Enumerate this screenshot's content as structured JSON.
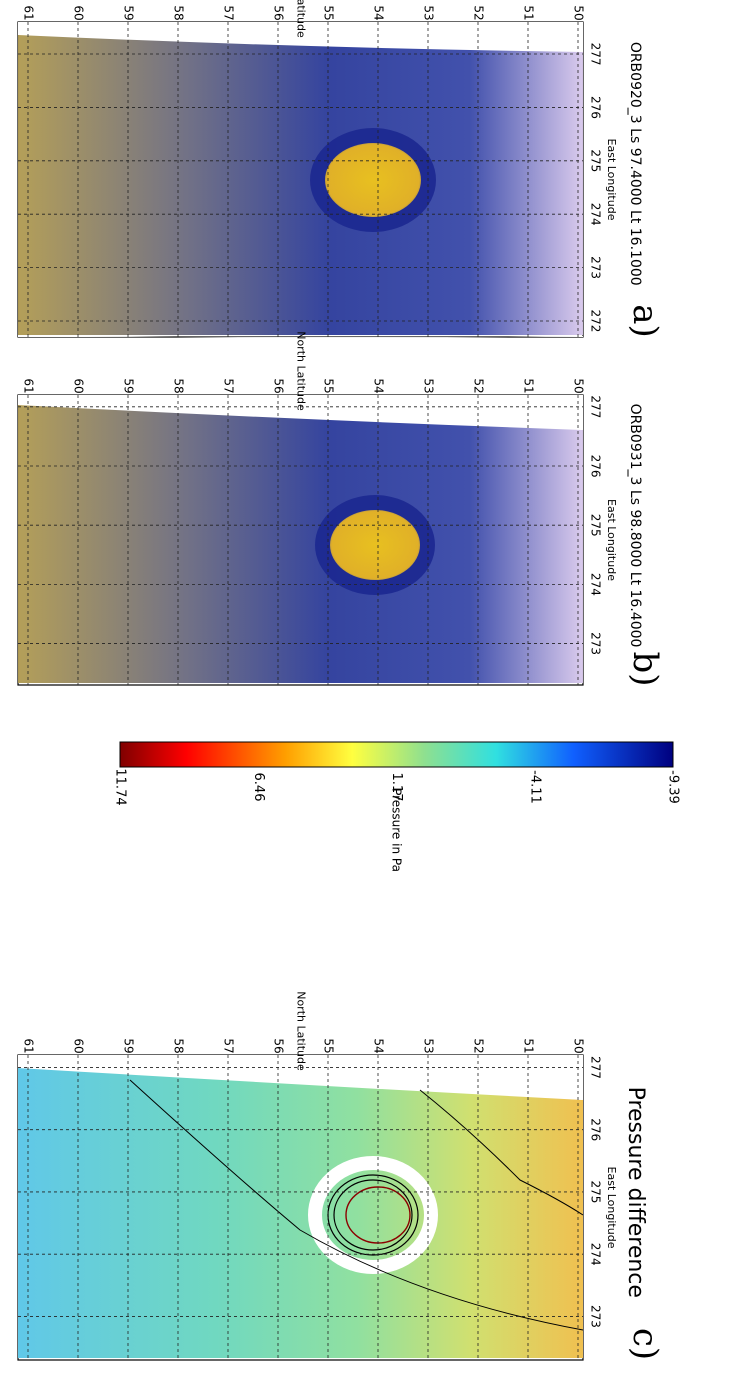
{
  "panels": [
    {
      "id": "a",
      "letter": "a)",
      "caption": "ORB0920_3 Ls 97.4000 Lt 16.1000",
      "xlabel": "East Longitude",
      "ylabel": "North Latitude",
      "x_ticks": [
        "272",
        "273",
        "274",
        "275",
        "276",
        "277"
      ],
      "y_ticks": [
        "50",
        "51",
        "52",
        "53",
        "54",
        "55",
        "56",
        "57",
        "58",
        "59",
        "60",
        "61"
      ],
      "colormap": "brown-blue-pink"
    },
    {
      "id": "b",
      "letter": "b)",
      "caption": "ORB0931_3 Ls 98.8000 Lt 16.4000",
      "xlabel": "East Longitude",
      "ylabel": "North Latitude",
      "x_ticks": [
        "273",
        "274",
        "275",
        "276",
        "277"
      ],
      "y_ticks": [
        "50",
        "51",
        "52",
        "53",
        "54",
        "55",
        "56",
        "57",
        "58",
        "59",
        "60",
        "61"
      ],
      "colormap": "brown-blue-pink"
    },
    {
      "id": "c",
      "letter": "c)",
      "caption": "Pressure difference",
      "xlabel": "East Longitude",
      "ylabel": "North Latitude",
      "x_ticks": [
        "273",
        "274",
        "275",
        "276",
        "277"
      ],
      "y_ticks": [
        "50",
        "51",
        "52",
        "53",
        "54",
        "55",
        "56",
        "57",
        "58",
        "59",
        "60",
        "61"
      ],
      "colormap": "jet"
    }
  ],
  "colorbar": {
    "label": "Pressure in Pa",
    "ticks": [
      "11.74",
      "6.46",
      "1.17",
      "-4.11",
      "-9.39"
    ],
    "min": -9.39,
    "max": 11.74
  },
  "chart_data": [
    {
      "type": "heatmap",
      "caption": "ORB0920_3 Ls 97.4000 Lt 16.1000",
      "xlabel": "East Longitude",
      "ylabel": "North Latitude",
      "xlim": [
        271.7,
        277.6
      ],
      "ylim": [
        49.9,
        61.2
      ],
      "grid": true
    },
    {
      "type": "heatmap",
      "caption": "ORB0931_3 Ls 98.8000 Lt 16.4000",
      "xlabel": "East Longitude",
      "ylabel": "North Latitude",
      "xlim": [
        272.3,
        277.2
      ],
      "ylim": [
        49.9,
        61.2
      ],
      "grid": true
    },
    {
      "type": "heatmap",
      "caption": "Pressure difference",
      "xlabel": "East Longitude",
      "ylabel": "North Latitude",
      "xlim": [
        272.3,
        277.2
      ],
      "ylim": [
        49.9,
        61.2
      ],
      "grid": true,
      "colorbar_range": [
        -9.39,
        11.74
      ]
    }
  ]
}
